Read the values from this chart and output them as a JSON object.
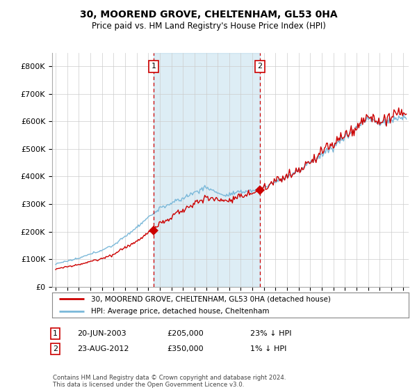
{
  "title": "30, MOOREND GROVE, CHELTENHAM, GL53 0HA",
  "subtitle": "Price paid vs. HM Land Registry's House Price Index (HPI)",
  "ylim": [
    0,
    850000
  ],
  "yticks": [
    0,
    100000,
    200000,
    300000,
    400000,
    500000,
    600000,
    700000,
    800000
  ],
  "xlim_start": 1994.7,
  "xlim_end": 2025.5,
  "sale1_date": 2003.47,
  "sale1_price": 205000,
  "sale2_date": 2012.64,
  "sale2_price": 350000,
  "hpi_color": "#7ab8d9",
  "price_color": "#cc0000",
  "fill_color": "#ddeeff",
  "legend_price_label": "30, MOOREND GROVE, CHELTENHAM, GL53 0HA (detached house)",
  "legend_hpi_label": "HPI: Average price, detached house, Cheltenham",
  "sale1_info": "20-JUN-2003",
  "sale1_amount": "£205,000",
  "sale1_hpi": "23% ↓ HPI",
  "sale2_info": "23-AUG-2012",
  "sale2_amount": "£350,000",
  "sale2_hpi": "1% ↓ HPI",
  "footnote": "Contains HM Land Registry data © Crown copyright and database right 2024.\nThis data is licensed under the Open Government Licence v3.0.",
  "bg_color": "#ffffff",
  "grid_color": "#cccccc",
  "vline_color": "#cc0000"
}
